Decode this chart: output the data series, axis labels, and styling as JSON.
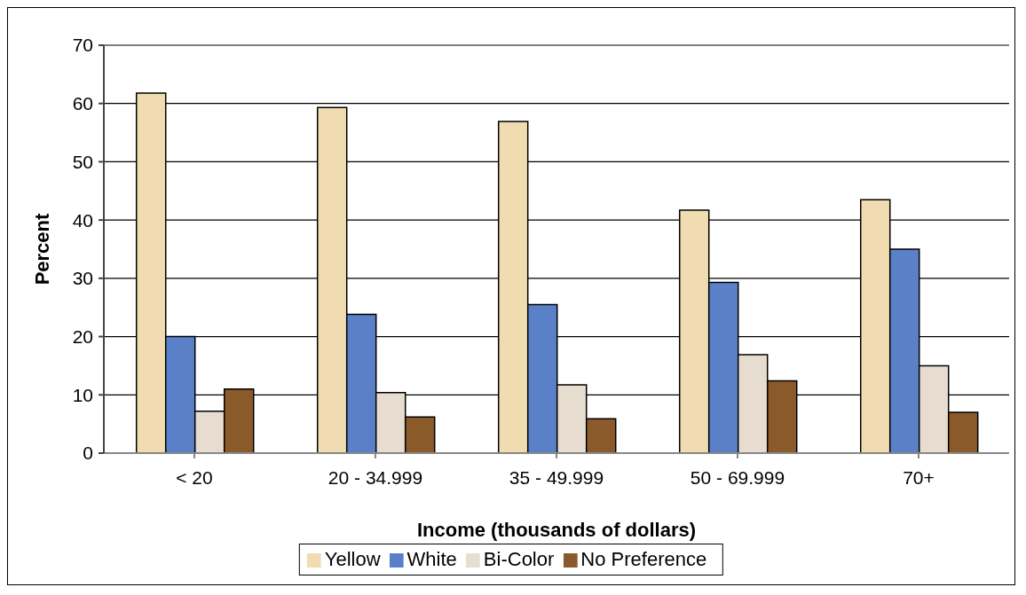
{
  "chart_data": {
    "type": "bar",
    "xlabel": "Income (thousands of dollars)",
    "ylabel": "Percent",
    "categories": [
      "< 20",
      "20 - 34.999",
      "35 - 49.999",
      "50 - 69.999",
      "70+"
    ],
    "series": [
      {
        "name": "Yellow",
        "color": "#f0dcb0",
        "values": [
          61.8,
          59.3,
          56.9,
          41.7,
          43.5
        ]
      },
      {
        "name": "White",
        "color": "#5a80c8",
        "values": [
          20,
          23.8,
          25.5,
          29.3,
          35
        ]
      },
      {
        "name": "Bi-Color",
        "color": "#e6ddd0",
        "values": [
          7.2,
          10.4,
          11.7,
          16.9,
          15
        ]
      },
      {
        "name": "No Preference",
        "color": "#8b5a2b",
        "values": [
          11,
          6.2,
          5.9,
          12.4,
          7
        ]
      }
    ],
    "ylim": [
      0,
      70
    ],
    "yticks": [
      0,
      10,
      20,
      30,
      40,
      50,
      60,
      70
    ],
    "grid": "y",
    "legend": "bottom"
  }
}
